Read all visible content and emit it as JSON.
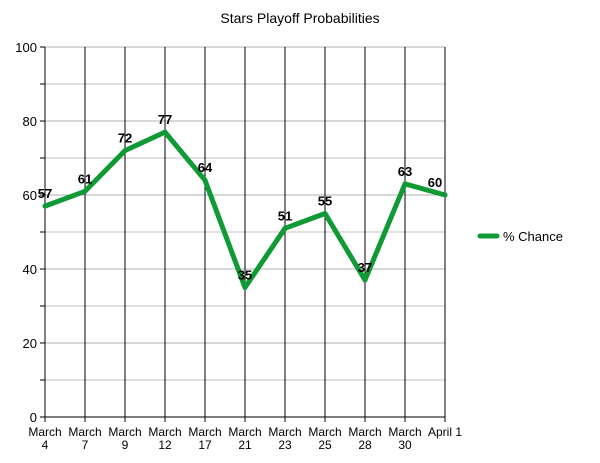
{
  "chart_data": {
    "type": "line",
    "title": "Stars Playoff Probabilities",
    "categories": [
      [
        "March",
        "4"
      ],
      [
        "March",
        "7"
      ],
      [
        "March",
        "9"
      ],
      [
        "March",
        "12"
      ],
      [
        "March",
        "17"
      ],
      [
        "March",
        "21"
      ],
      [
        "March",
        "23"
      ],
      [
        "March",
        "25"
      ],
      [
        "March",
        "28"
      ],
      [
        "March",
        "30"
      ],
      [
        "April 1"
      ]
    ],
    "series": [
      {
        "name": "% Chance",
        "color": "#0f9a35",
        "values": [
          57,
          61,
          72,
          77,
          64,
          35,
          51,
          55,
          37,
          63,
          60
        ]
      }
    ],
    "ylim": [
      0,
      100
    ],
    "ymajor": 20,
    "yminor": 10,
    "yticks": [
      "0",
      "20",
      "40",
      "60",
      "80",
      "100"
    ],
    "grid": true,
    "legend": "right",
    "colors": {
      "grid_major": "#b3b3b3",
      "grid_minor": "#c8bcbc",
      "axis": "#000000"
    }
  }
}
